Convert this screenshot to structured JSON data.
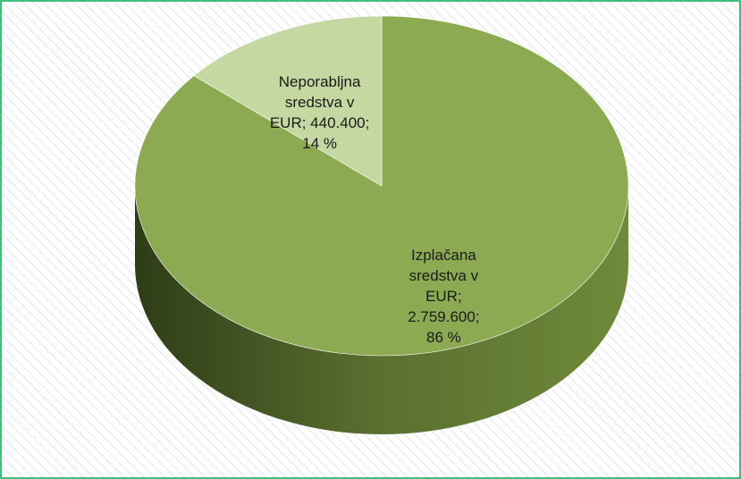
{
  "chart_data": {
    "type": "pie3d",
    "values": [
      2759600,
      440400
    ],
    "value_labels": [
      "Izplačana sredstva v EUR; 2.759.600; 86 %",
      "Neporabljna sredstva v EUR; 440.400; 14 %"
    ],
    "colors": [
      "#8caa52",
      "#c5d8a2"
    ],
    "side_color": "#5a7030"
  }
}
